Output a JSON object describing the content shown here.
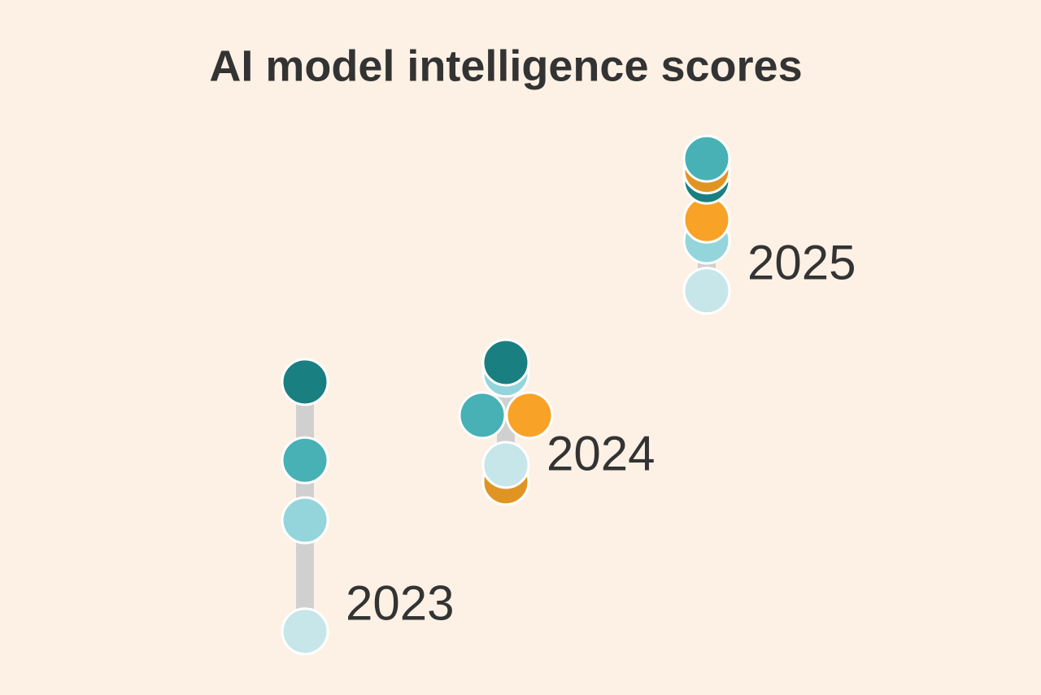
{
  "chart_data": {
    "type": "dot",
    "title": "AI model intelligence scores",
    "categories": [
      "2023",
      "2024",
      "2025"
    ],
    "ylim": [
      0,
      100
    ],
    "series": [
      {
        "color": "#1a7f80",
        "values": [
          52.4,
          56.2,
          91.7
        ]
      },
      {
        "color": "#47b1b5",
        "values": [
          37.1,
          45.9,
          96.0
        ]
      },
      {
        "color": "#94d5dc",
        "values": [
          25.4,
          54.0,
          80.0
        ]
      },
      {
        "color": "#c6e6ea",
        "values": [
          3.7,
          36.2,
          70.2
        ]
      },
      {
        "color": "#f8a228",
        "values": [
          null,
          45.9,
          84.1
        ]
      },
      {
        "color": "#e09422",
        "values": [
          null,
          32.9,
          93.7
        ]
      }
    ]
  }
}
